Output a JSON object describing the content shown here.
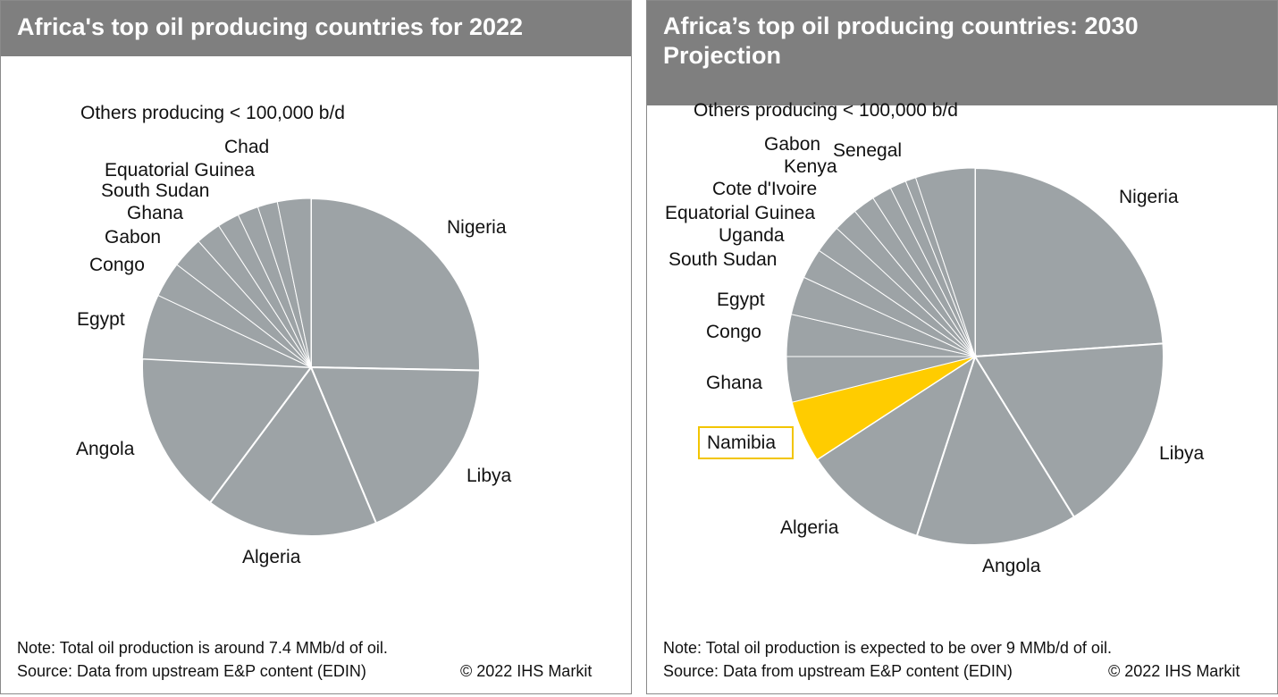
{
  "chart_data": [
    {
      "type": "pie",
      "title": "Africa's top oil producing countries for 2022",
      "start": "top",
      "direction": "clockwise",
      "others_label": "Others producing < 100,000 b/d",
      "slices": [
        {
          "label": "Nigeria",
          "value": 25.3
        },
        {
          "label": "Libya",
          "value": 18.4
        },
        {
          "label": "Algeria",
          "value": 16.5
        },
        {
          "label": "Angola",
          "value": 15.6
        },
        {
          "label": "Egypt",
          "value": 6.2
        },
        {
          "label": "Congo",
          "value": 3.4
        },
        {
          "label": "Gabon",
          "value": 3.0
        },
        {
          "label": "Ghana",
          "value": 2.4
        },
        {
          "label": "South Sudan",
          "value": 2.1
        },
        {
          "label": "Equatorial Guinea",
          "value": 2.0
        },
        {
          "label": "Chad",
          "value": 1.9
        },
        {
          "label": "Others producing < 100,000 b/d",
          "value": 3.2
        }
      ],
      "note": "Note: Total oil production is around 7.4 MMb/d of oil.",
      "source": "Source: Data from upstream E&P content (EDIN)",
      "copyright": "© 2022 IHS Markit"
    },
    {
      "type": "pie",
      "title": "Africa’s top oil producing countries: 2030 Projection",
      "start": "top",
      "direction": "clockwise",
      "others_label": "Others producing < 100,000 b/d",
      "highlight": "Namibia",
      "slices": [
        {
          "label": "Nigeria",
          "value": 23.9
        },
        {
          "label": "Libya",
          "value": 17.3
        },
        {
          "label": "Angola",
          "value": 13.8
        },
        {
          "label": "Algeria",
          "value": 10.8
        },
        {
          "label": "Namibia",
          "value": 5.3
        },
        {
          "label": "Ghana",
          "value": 3.9
        },
        {
          "label": "Congo",
          "value": 3.6
        },
        {
          "label": "Egypt",
          "value": 3.3
        },
        {
          "label": "South Sudan",
          "value": 2.6
        },
        {
          "label": "Uganda",
          "value": 2.4
        },
        {
          "label": "Equatorial Guinea",
          "value": 2.1
        },
        {
          "label": "Cote d'Ivoire",
          "value": 1.9
        },
        {
          "label": "Kenya",
          "value": 1.7
        },
        {
          "label": "Gabon",
          "value": 1.4
        },
        {
          "label": "Senegal",
          "value": 0.9
        },
        {
          "label": "Others producing < 100,000 b/d",
          "value": 5.1
        }
      ],
      "note": "Note: Total oil production is expected to be over 9 MMb/d of oil.",
      "source": "Source: Data from upstream E&P content (EDIN)",
      "copyright": "© 2022 IHS Markit"
    }
  ],
  "colors": {
    "slice": "#9da3a6",
    "highlight": "#ffcc00",
    "header": "#7f7f7f",
    "separator": "#ffffff"
  }
}
